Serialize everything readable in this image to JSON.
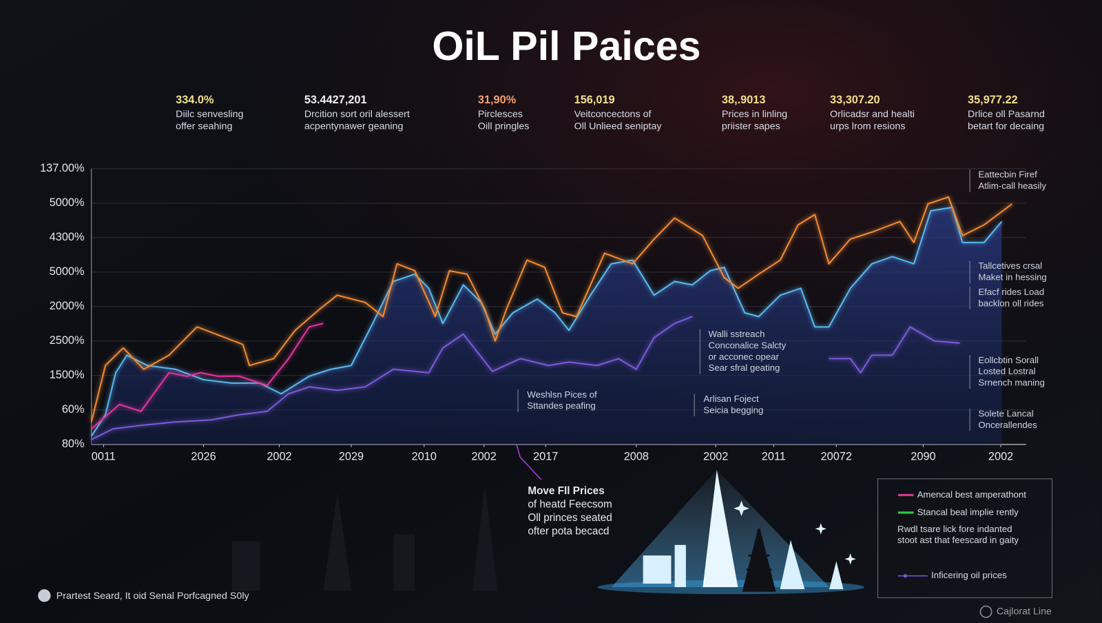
{
  "chart_data": {
    "type": "line",
    "title": "OiL Pil Paices",
    "xlim": [
      0,
      100
    ],
    "ylim": [
      0,
      8
    ],
    "grid": true,
    "xticks": [
      {
        "value": 1.3,
        "label": "0011"
      },
      {
        "value": 12.0,
        "label": "2026"
      },
      {
        "value": 20.1,
        "label": "2002"
      },
      {
        "value": 27.8,
        "label": "2029"
      },
      {
        "value": 35.6,
        "label": "2010"
      },
      {
        "value": 42.0,
        "label": "2002"
      },
      {
        "value": 48.6,
        "label": "2017"
      },
      {
        "value": 58.3,
        "label": "2008"
      },
      {
        "value": 66.8,
        "label": "2002"
      },
      {
        "value": 73.0,
        "label": "2011"
      },
      {
        "value": 79.7,
        "label": "20072"
      },
      {
        "value": 89.0,
        "label": "2090"
      },
      {
        "value": 97.3,
        "label": "2002"
      }
    ],
    "yticks": [
      {
        "value": 0,
        "label": "80%"
      },
      {
        "value": 1,
        "label": "60%"
      },
      {
        "value": 2,
        "label": "1500%"
      },
      {
        "value": 3,
        "label": "2500%"
      },
      {
        "value": 4,
        "label": "2000%"
      },
      {
        "value": 5,
        "label": "5000%"
      },
      {
        "value": 6,
        "label": "4300%"
      },
      {
        "value": 7,
        "label": "5000%"
      },
      {
        "value": 8,
        "label": "137.00%"
      }
    ],
    "series": [
      {
        "color": "#5ab8f0",
        "fill": true,
        "x": [
          0,
          1.5,
          2.6,
          3.8,
          6.0,
          9.0,
          12.0,
          15.0,
          18.0,
          20.3,
          23.3,
          25.6,
          27.8,
          30.1,
          32.3,
          34.6,
          36.1,
          37.6,
          39.8,
          41.7,
          43.2,
          45.1,
          47.7,
          49.6,
          51.1,
          53.4,
          55.6,
          57.9,
          60.2,
          62.4,
          64.3,
          66.2,
          67.7,
          69.9,
          71.4,
          73.7,
          75.9,
          77.4,
          78.9,
          81.2,
          83.5,
          85.7,
          88.0,
          89.8,
          92.1,
          93.2,
          95.5,
          97.4
        ],
        "values": [
          0.24,
          0.86,
          2.08,
          2.59,
          2.29,
          2.18,
          1.88,
          1.78,
          1.78,
          1.47,
          1.98,
          2.18,
          2.29,
          3.51,
          4.73,
          4.94,
          4.53,
          3.51,
          4.63,
          4.12,
          3.2,
          3.82,
          4.22,
          3.82,
          3.31,
          4.33,
          5.24,
          5.35,
          4.33,
          4.73,
          4.63,
          5.04,
          5.14,
          3.82,
          3.71,
          4.33,
          4.53,
          3.41,
          3.41,
          4.53,
          5.24,
          5.45,
          5.24,
          6.78,
          6.88,
          5.86,
          5.86,
          6.47
        ]
      },
      {
        "color": "#f08a30",
        "fill": false,
        "x": [
          0,
          1.5,
          3.4,
          5.6,
          8.3,
          11.3,
          14.3,
          16.2,
          16.9,
          19.5,
          21.8,
          24.4,
          26.3,
          29.3,
          31.2,
          32.7,
          34.6,
          36.8,
          38.3,
          40.2,
          42.1,
          43.2,
          44.4,
          46.6,
          48.5,
          50.4,
          51.9,
          54.9,
          57.9,
          60.2,
          62.4,
          65.4,
          67.7,
          69.2,
          71.4,
          73.7,
          75.6,
          77.4,
          78.9,
          81.2,
          83.5,
          86.5,
          88.0,
          89.5,
          91.7,
          93.2,
          95.5,
          98.5
        ],
        "values": [
          0.65,
          2.29,
          2.8,
          2.18,
          2.59,
          3.41,
          3.1,
          2.9,
          2.29,
          2.49,
          3.31,
          3.92,
          4.33,
          4.12,
          3.71,
          5.24,
          5.04,
          3.71,
          5.04,
          4.94,
          3.92,
          3.0,
          3.92,
          5.35,
          5.14,
          3.82,
          3.71,
          5.55,
          5.24,
          5.96,
          6.57,
          6.06,
          4.84,
          4.53,
          4.94,
          5.35,
          6.37,
          6.67,
          5.24,
          5.96,
          6.16,
          6.47,
          5.86,
          6.98,
          7.18,
          6.06,
          6.37,
          6.98
        ]
      },
      {
        "name": "Amencal best amperathont",
        "color": "#e0359a",
        "fill": false,
        "x": [
          0,
          3.0,
          5.3,
          8.3,
          10.2,
          11.7,
          13.5,
          15.8,
          18.8,
          21.1,
          23.3,
          24.8
        ],
        "values": [
          0.45,
          1.16,
          0.96,
          2.08,
          1.98,
          2.08,
          1.98,
          1.98,
          1.71,
          2.49,
          3.41,
          3.51
        ]
      },
      {
        "name": "Inficering oil prices",
        "color": "#7a5ad8",
        "fill": false,
        "x": [
          0,
          2.3,
          5.3,
          9.0,
          12.8,
          15.8,
          18.8,
          21.1,
          23.3,
          26.3,
          29.3,
          32.3,
          36.1,
          37.6,
          39.8,
          42.9,
          45.9,
          48.9,
          51.1,
          54.1,
          56.4,
          58.3,
          60.2,
          62.4,
          64.3,
          71.0,
          78.9,
          81.2,
          82.3,
          83.5,
          85.7,
          87.6,
          90.2,
          92.9
        ],
        "values": [
          0.14,
          0.45,
          0.55,
          0.65,
          0.71,
          0.86,
          0.96,
          1.47,
          1.67,
          1.57,
          1.67,
          2.18,
          2.08,
          2.8,
          3.2,
          2.12,
          2.49,
          2.29,
          2.39,
          2.29,
          2.49,
          2.18,
          3.1,
          3.51,
          3.71,
          null,
          2.49,
          2.49,
          2.08,
          2.59,
          2.59,
          3.41,
          3.0,
          2.94
        ]
      }
    ],
    "legend": [
      {
        "label": "Amencal best amperathont",
        "color": "#e0359a"
      },
      {
        "label": "Stancal beal implie rently",
        "color": "#2ecc40"
      },
      {
        "label": "Inficering oil prices",
        "color": "#7a5ad8"
      }
    ],
    "legend_note": [
      "Rwdl tsare lick fore indanted",
      "stoot ast that feescard in gaity"
    ],
    "stats": [
      {
        "value": "334.0%",
        "color": "#f3e08a",
        "lines": [
          "Diilc senvesling",
          "offer seahing"
        ]
      },
      {
        "value": "53.4427,201",
        "color": "#f0f0f0",
        "lines": [
          "Drcition sort oril alessert",
          "acpentynawer geaning"
        ]
      },
      {
        "value": "31,90%",
        "color": "#f5a070",
        "lines": [
          "Pirclesces",
          "Oill pringles"
        ]
      },
      {
        "value": "156,019",
        "color": "#f3e08a",
        "lines": [
          "Veitconcectons of",
          "Oll Unlieed seniptay"
        ]
      },
      {
        "value": "38,.9013",
        "color": "#f3e08a",
        "lines": [
          "Prices in linling",
          "priister sapes"
        ]
      },
      {
        "value": "33,307.20",
        "color": "#f3e08a",
        "lines": [
          "Orlicadsr and healti",
          "urps lrom resions"
        ]
      },
      {
        "value": "35,977.22",
        "color": "#f3e08a",
        "lines": [
          "Drlice oll Pasarnd",
          "betart for decaing"
        ]
      }
    ],
    "side_notes": [
      [
        "Eattecbin Firef",
        "Atlim-call heasily"
      ],
      [
        "Tallcetives crsal",
        "Maket in hessing"
      ],
      [
        "Efacf rides Load",
        "backlon oll rides"
      ],
      [
        "Eollcbtin Sorall",
        "Losted Lostral",
        "Srnench maning"
      ],
      [
        "Solete Lancal",
        "Oncerallendes"
      ]
    ],
    "chart_notes": [
      [
        "Walli sstreach",
        "Conconalice Salcty",
        "or acconec opear",
        "Sear sfral geating"
      ],
      [
        "Weshlsn Pices of",
        "Sttandes peafing"
      ],
      [
        "Arlisan Foject",
        "Seicia begging"
      ]
    ],
    "callout": [
      "Move Fll Prices",
      "of heatd Feecsom",
      "Oll princes seated",
      "ofter pota becacd"
    ]
  },
  "footer": {
    "note": "Prartest Seard, It oid Senal Porfcagned S0ly",
    "brand": "Cajlorat Line"
  }
}
